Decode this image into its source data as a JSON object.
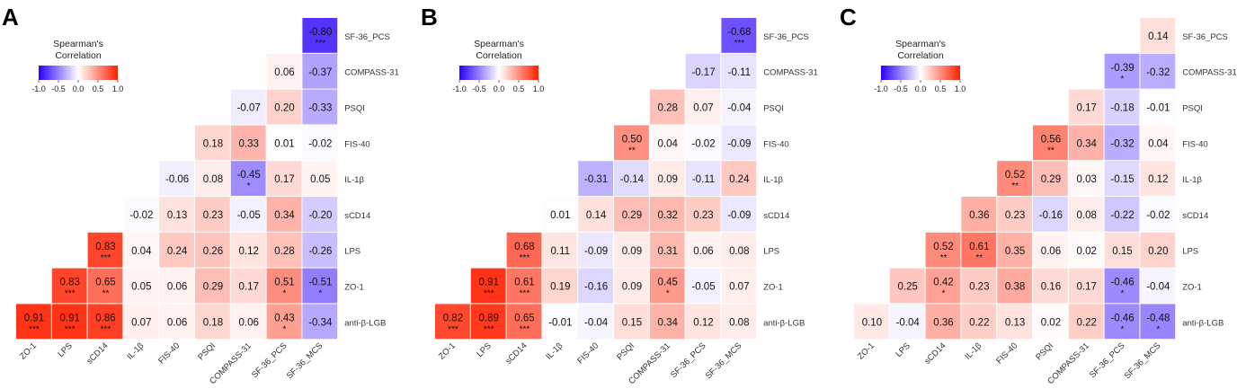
{
  "chart_data": [
    {
      "type": "heatmap",
      "panel_label": "A",
      "legend": {
        "title_line1": "Spearman's",
        "title_line2": "Correlation",
        "ticks": [
          "-1.0",
          "-0.5",
          "0.0",
          "0.5",
          "1.0"
        ],
        "range": [
          -1,
          1
        ]
      },
      "colors": {
        "negative": "#2A00FF",
        "zero": "#FFFFFF",
        "positive": "#FF2000"
      },
      "x_labels": [
        "ZO-1",
        "LPS",
        "sCD14",
        "IL-1β",
        "FIS-40",
        "PSQI",
        "COMPASS-31",
        "SF-36_PCS",
        "SF-36_MCS"
      ],
      "y_labels": [
        "SF-36_PCS",
        "COMPASS-31",
        "PSQI",
        "FIS-40",
        "IL-1β",
        "sCD14",
        "LPS",
        "ZO-1",
        "anti-β-LGB"
      ],
      "rows": [
        {
          "values": [
            "-0.80"
          ],
          "stars": [
            "***"
          ]
        },
        {
          "values": [
            "0.06",
            "-0.37"
          ],
          "stars": [
            "",
            ""
          ]
        },
        {
          "values": [
            "-0.07",
            "0.20",
            "-0.33"
          ],
          "stars": [
            "",
            "",
            ""
          ]
        },
        {
          "values": [
            "0.18",
            "0.33",
            "0.01",
            "-0.02"
          ],
          "stars": [
            "",
            "",
            "",
            ""
          ]
        },
        {
          "values": [
            "-0.06",
            "0.08",
            "-0.45",
            "0.17",
            "0.05"
          ],
          "stars": [
            "",
            "",
            "*",
            "",
            ""
          ]
        },
        {
          "values": [
            "-0.02",
            "0.13",
            "0.23",
            "-0.05",
            "0.34",
            "-0.20"
          ],
          "stars": [
            "",
            "",
            "",
            "",
            "",
            ""
          ]
        },
        {
          "values": [
            "0.83",
            "0.04",
            "0.24",
            "0.26",
            "0.12",
            "0.28",
            "-0.26"
          ],
          "stars": [
            "***",
            "",
            "",
            "",
            "",
            "",
            ""
          ]
        },
        {
          "values": [
            "0.83",
            "0.65",
            "0.05",
            "0.06",
            "0.29",
            "0.17",
            "0.51",
            "-0.51"
          ],
          "stars": [
            "***",
            "**",
            "",
            "",
            "",
            "",
            "*",
            "*"
          ]
        },
        {
          "values": [
            "0.91",
            "0.91",
            "0.86",
            "0.07",
            "0.06",
            "0.18",
            "0.06",
            "0.43",
            "-0.34"
          ],
          "stars": [
            "***",
            "***",
            "***",
            "",
            "",
            "",
            "",
            "*",
            ""
          ]
        }
      ]
    },
    {
      "type": "heatmap",
      "panel_label": "B",
      "legend": {
        "title_line1": "Spearman's",
        "title_line2": "Correlation",
        "ticks": [
          "-1.0",
          "-0.5",
          "0.0",
          "0.5",
          "1.0"
        ],
        "range": [
          -1,
          1
        ]
      },
      "colors": {
        "negative": "#2A00FF",
        "zero": "#FFFFFF",
        "positive": "#FF2000"
      },
      "x_labels": [
        "ZO-1",
        "LPS",
        "sCD14",
        "IL-1β",
        "FIS-40",
        "PSQI",
        "COMPASS-31",
        "SF-36_PCS",
        "SF-36_MCS"
      ],
      "y_labels": [
        "SF-36_PCS",
        "COMPASS-31",
        "PSQI",
        "FIS-40",
        "IL-1β",
        "sCD14",
        "LPS",
        "ZO-1",
        "anti-β-LGB"
      ],
      "rows": [
        {
          "values": [
            "-0.68"
          ],
          "stars": [
            "***"
          ]
        },
        {
          "values": [
            "-0.17",
            "-0.11"
          ],
          "stars": [
            "",
            ""
          ]
        },
        {
          "values": [
            "0.28",
            "0.07",
            "-0.04"
          ],
          "stars": [
            "",
            "",
            ""
          ]
        },
        {
          "values": [
            "0.50",
            "0.04",
            "-0.02",
            "-0.09"
          ],
          "stars": [
            "**",
            "",
            "",
            ""
          ]
        },
        {
          "values": [
            "-0.31",
            "-0.14",
            "0.09",
            "-0.11",
            "0.24"
          ],
          "stars": [
            "",
            "",
            "",
            "",
            ""
          ]
        },
        {
          "values": [
            "0.01",
            "0.14",
            "0.29",
            "0.32",
            "0.23",
            "-0.09"
          ],
          "stars": [
            "",
            "",
            "",
            "",
            "",
            ""
          ]
        },
        {
          "values": [
            "0.68",
            "0.11",
            "-0.09",
            "0.09",
            "0.31",
            "0.06",
            "0.08"
          ],
          "stars": [
            "***",
            "",
            "",
            "",
            "",
            "",
            ""
          ]
        },
        {
          "values": [
            "0.91",
            "0.61",
            "0.19",
            "-0.16",
            "0.09",
            "0.45",
            "-0.05",
            "0.07"
          ],
          "stars": [
            "***",
            "***",
            "",
            "",
            "",
            "*",
            "",
            ""
          ]
        },
        {
          "values": [
            "0.82",
            "0.89",
            "0.65",
            "-0.01",
            "-0.04",
            "0.15",
            "0.34",
            "0.12",
            "0.08"
          ],
          "stars": [
            "***",
            "***",
            "***",
            "",
            "",
            "",
            "",
            "",
            ""
          ]
        }
      ]
    },
    {
      "type": "heatmap",
      "panel_label": "C",
      "legend": {
        "title_line1": "Spearman's",
        "title_line2": "Correlation",
        "ticks": [
          "-1.0",
          "-0.5",
          "0.0",
          "0.5",
          "1.0"
        ],
        "range": [
          -1,
          1
        ]
      },
      "colors": {
        "negative": "#2A00FF",
        "zero": "#FFFFFF",
        "positive": "#FF2000"
      },
      "x_labels": [
        "ZO-1",
        "LPS",
        "sCD14",
        "IL-1β",
        "FIS-40",
        "PSQI",
        "COMPASS-31",
        "SF-36_PCS",
        "SF-36_MCS"
      ],
      "y_labels": [
        "SF-36_PCS",
        "COMPASS-31",
        "PSQI",
        "FIS-40",
        "IL-1β",
        "sCD14",
        "LPS",
        "ZO-1",
        "anti-β-LGB"
      ],
      "rows": [
        {
          "values": [
            "0.14"
          ],
          "stars": [
            ""
          ]
        },
        {
          "values": [
            "-0.39",
            "-0.32"
          ],
          "stars": [
            "*",
            ""
          ]
        },
        {
          "values": [
            "0.17",
            "-0.18",
            "-0.01"
          ],
          "stars": [
            "",
            "",
            ""
          ]
        },
        {
          "values": [
            "0.56",
            "0.34",
            "-0.32",
            "0.04"
          ],
          "stars": [
            "**",
            "",
            "",
            ""
          ]
        },
        {
          "values": [
            "0.52",
            "0.29",
            "0.03",
            "-0.15",
            "0.12"
          ],
          "stars": [
            "**",
            "",
            "",
            "",
            ""
          ]
        },
        {
          "values": [
            "0.36",
            "0.23",
            "-0.16",
            "0.08",
            "-0.22",
            "-0.02"
          ],
          "stars": [
            "",
            "",
            "",
            "",
            "",
            ""
          ]
        },
        {
          "values": [
            "0.52",
            "0.61",
            "0.35",
            "0.06",
            "0.02",
            "0.15",
            "0.20"
          ],
          "stars": [
            "**",
            "**",
            "",
            "",
            "",
            "",
            ""
          ]
        },
        {
          "values": [
            "0.25",
            "0.42",
            "0.23",
            "0.38",
            "0.16",
            "0.17",
            "-0.46",
            "-0.04"
          ],
          "stars": [
            "",
            "*",
            "",
            "",
            "",
            "",
            "*",
            ""
          ]
        },
        {
          "values": [
            "0.10",
            "-0.04",
            "0.36",
            "0.22",
            "0.13",
            "0.02",
            "0.22",
            "-0.46",
            "-0.48"
          ],
          "stars": [
            "",
            "",
            "",
            "",
            "",
            "",
            "",
            "*",
            "*"
          ]
        }
      ]
    }
  ]
}
